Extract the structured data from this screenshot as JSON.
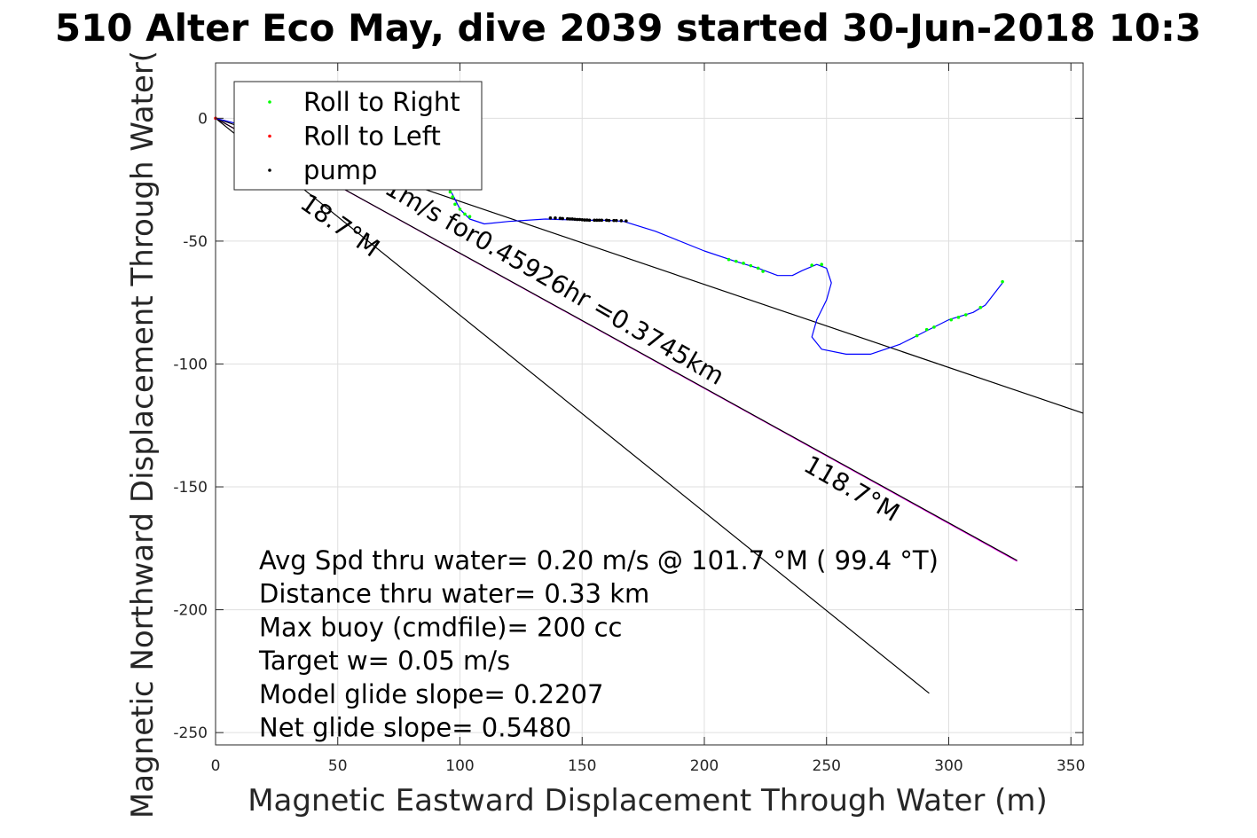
{
  "chart_data": {
    "type": "line",
    "title": "510 Alter Eco May, dive 2039 started 30-Jun-2018 10:3",
    "xlabel": "Magnetic Eastward Displacement Through Water (m)",
    "ylabel": "Magnetic Northward Displacement Through Water(",
    "xlim": [
      0,
      355
    ],
    "ylim": [
      -255,
      22.5
    ],
    "xticks": [
      0,
      50,
      100,
      150,
      200,
      250,
      300,
      350
    ],
    "yticks": [
      0,
      -50,
      -100,
      -150,
      -200,
      -250
    ],
    "grid": true,
    "legend_position": "top-left",
    "legend": [
      {
        "label": "Roll to Right",
        "color": "#00ff00"
      },
      {
        "label": "Roll to Left",
        "color": "#ff0000"
      },
      {
        "label": "pump",
        "color": "#000000"
      }
    ],
    "track": {
      "color": "#0000ff",
      "x": [
        0,
        8,
        20,
        35,
        50,
        65,
        80,
        90,
        95,
        97,
        100,
        104,
        110,
        120,
        135,
        150,
        160,
        167,
        180,
        200,
        212,
        222,
        230,
        236,
        240,
        246,
        250,
        252,
        250,
        246,
        244,
        248,
        258,
        268,
        280,
        290,
        300,
        310,
        315,
        322
      ],
      "y": [
        0,
        -2,
        -6,
        -10,
        -14,
        -18,
        -22,
        -25,
        -28,
        -31,
        -37,
        -41,
        -43,
        -42,
        -41,
        -41.5,
        -41.5,
        -42,
        -46,
        -54,
        -58,
        -61,
        -64,
        -64,
        -62,
        -59.5,
        -61,
        -67,
        -74,
        -82,
        -89,
        -94,
        -96,
        -96,
        -92,
        -87,
        -82,
        -79,
        -76,
        -67
      ]
    },
    "roll_right_points": {
      "x": [
        96,
        97,
        98,
        100,
        102,
        104,
        210,
        213,
        216,
        219,
        222,
        224,
        244,
        248,
        287,
        291,
        294,
        301,
        304,
        307,
        313,
        322
      ],
      "y": [
        -30,
        -32,
        -35,
        -37,
        -39,
        -40,
        -57.5,
        -58.2,
        -59,
        -60,
        -61,
        -62.3,
        -59.8,
        -59.5,
        -88.5,
        -86,
        -85,
        -82,
        -81,
        -80,
        -77,
        -66.5
      ]
    },
    "roll_left_points": {
      "x": [
        0
      ],
      "y": [
        0
      ]
    },
    "pump_points": {
      "x": [
        137,
        139,
        141,
        142,
        144,
        145,
        146,
        147,
        148,
        149,
        150,
        151,
        152,
        153,
        155,
        156,
        157,
        158,
        160,
        161,
        163,
        164,
        166,
        168
      ],
      "y": [
        -40.6,
        -40.6,
        -40.7,
        -40.8,
        -40.9,
        -41,
        -41,
        -41.1,
        -41.2,
        -41.2,
        -41.3,
        -41.4,
        -41.4,
        -41.5,
        -41.5,
        -41.5,
        -41.5,
        -41.5,
        -41.5,
        -41.6,
        -41.6,
        -41.6,
        -41.7,
        -41.8
      ]
    },
    "lines": [
      {
        "name": "upper-reference",
        "color": "#000000",
        "x": [
          0,
          355
        ],
        "y": [
          0,
          -120
        ]
      },
      {
        "name": "lower-reference",
        "color": "#000000",
        "x": [
          0,
          292
        ],
        "y": [
          0,
          -234
        ]
      },
      {
        "name": "heading-line",
        "color": "#ff00ff",
        "x": [
          0,
          328
        ],
        "y": [
          0,
          -180.3
        ]
      },
      {
        "name": "heading-line-black",
        "color": "#000000",
        "x": [
          0,
          328
        ],
        "y": [
          0,
          -180
        ]
      }
    ],
    "line_labels": [
      {
        "text": "18.7°M",
        "x": 34,
        "y": -36,
        "angle": 35
      },
      {
        "text": "51m/s for0.45926hr =0.3745km",
        "x": 63,
        "y": -27,
        "angle": 30
      },
      {
        "text": "118.7°M",
        "x": 240,
        "y": -143,
        "angle": 30
      }
    ],
    "annotations": [
      "Avg Spd thru water=  0.20 m/s @ 101.7 °M ( 99.4 °T)",
      "Distance thru water=  0.33 km",
      "Max buoy (cmdfile)= 200 cc",
      "Target w= 0.05 m/s",
      "Model glide slope= 0.2207",
      "Net glide slope= 0.5480"
    ]
  }
}
